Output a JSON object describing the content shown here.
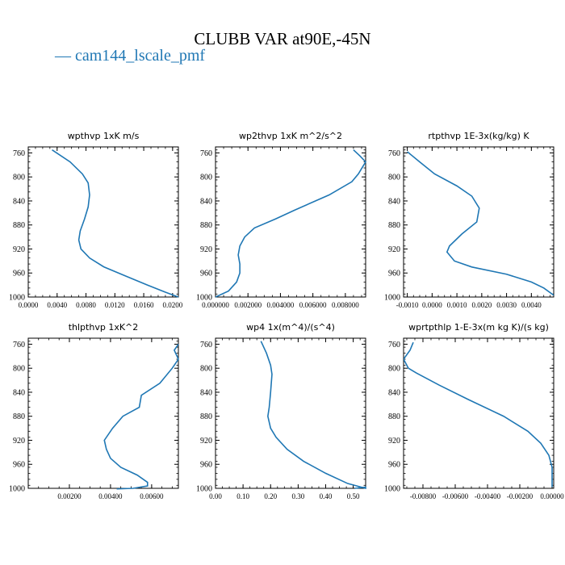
{
  "figure_title": "CLUBB VAR at90E,-45N",
  "legend": {
    "prefix": "—",
    "label": "cam144_lscale_pmf"
  },
  "colors": {
    "series": "#1f77b4",
    "axes": "#000000"
  },
  "chart_data": [
    {
      "type": "line",
      "title": "wpthvp  1xK m/s",
      "ylim": [
        1000,
        750
      ],
      "yticks": [
        760,
        800,
        840,
        880,
        920,
        960,
        1000
      ],
      "xlim": [
        0,
        0.0208
      ],
      "xticks": [
        0,
        0.004,
        0.008,
        0.012,
        0.016,
        0.02
      ],
      "xtick_labels": [
        "0.0000",
        "0.0040",
        "0.0080",
        "0.0120",
        "0.0160",
        "0.0200"
      ],
      "series": [
        {
          "points": [
            [
              0.0033,
              755
            ],
            [
              0.0058,
              775
            ],
            [
              0.0075,
              795
            ],
            [
              0.0083,
              810
            ],
            [
              0.0085,
              830
            ],
            [
              0.0083,
              850
            ],
            [
              0.0078,
              870
            ],
            [
              0.0072,
              890
            ],
            [
              0.007,
              905
            ],
            [
              0.0073,
              920
            ],
            [
              0.0085,
              935
            ],
            [
              0.0105,
              950
            ],
            [
              0.0135,
              965
            ],
            [
              0.0165,
              980
            ],
            [
              0.019,
              992
            ],
            [
              0.0208,
              1000
            ]
          ]
        }
      ]
    },
    {
      "type": "line",
      "title": "wp2thvp  1xK m^2/s^2",
      "ylim": [
        1000,
        750
      ],
      "yticks": [
        760,
        800,
        840,
        880,
        920,
        960,
        1000
      ],
      "xlim": [
        0,
        0.00925
      ],
      "xticks": [
        0,
        0.002,
        0.004,
        0.006,
        0.008
      ],
      "xtick_labels": [
        "0.000000",
        "0.002000",
        "0.004000",
        "0.006000",
        "0.008000"
      ],
      "series": [
        {
          "points": [
            [
              0.0085,
              755
            ],
            [
              0.0089,
              765
            ],
            [
              0.00925,
              775
            ],
            [
              0.0088,
              795
            ],
            [
              0.0084,
              808
            ],
            [
              0.007,
              830
            ],
            [
              0.0049,
              855
            ],
            [
              0.0037,
              870
            ],
            [
              0.0024,
              885
            ],
            [
              0.0018,
              900
            ],
            [
              0.0015,
              915
            ],
            [
              0.0014,
              930
            ],
            [
              0.0015,
              945
            ],
            [
              0.0015,
              960
            ],
            [
              0.0013,
              975
            ],
            [
              0.0008,
              990
            ],
            [
              0.0,
              1000
            ]
          ]
        }
      ]
    },
    {
      "type": "line",
      "title": "rtpthvp  1E-3x(kg/kg) K",
      "ylim": [
        1000,
        750
      ],
      "yticks": [
        760,
        800,
        840,
        880,
        920,
        960,
        1000
      ],
      "xlim": [
        -0.00115,
        0.0049
      ],
      "xticks": [
        -0.001,
        0,
        0.001,
        0.002,
        0.003,
        0.004
      ],
      "xtick_labels": [
        "-0.0010",
        "0.0000",
        "0.0010",
        "0.0020",
        "0.0030",
        "0.0040"
      ],
      "series": [
        {
          "points": [
            [
              -0.001,
              758
            ],
            [
              -0.0005,
              775
            ],
            [
              0.0001,
              795
            ],
            [
              0.001,
              815
            ],
            [
              0.0016,
              832
            ],
            [
              0.0019,
              852
            ],
            [
              0.0018,
              875
            ],
            [
              0.0012,
              895
            ],
            [
              0.0007,
              915
            ],
            [
              0.0006,
              925
            ],
            [
              0.0009,
              940
            ],
            [
              0.0016,
              950
            ],
            [
              0.003,
              962
            ],
            [
              0.004,
              975
            ],
            [
              0.0045,
              985
            ],
            [
              0.0049,
              997
            ]
          ]
        }
      ]
    },
    {
      "type": "line",
      "title": "thlpthvp  1xK^2",
      "ylim": [
        1000,
        750
      ],
      "yticks": [
        760,
        800,
        840,
        880,
        920,
        960,
        1000
      ],
      "xlim": [
        0,
        0.0073
      ],
      "xticks": [
        0.002,
        0.004,
        0.006
      ],
      "xtick_labels": [
        "0.00200",
        "0.00400",
        "0.00600"
      ],
      "series": [
        {
          "points": [
            [
              0.0073,
              760
            ],
            [
              0.0071,
              770
            ],
            [
              0.0073,
              785
            ],
            [
              0.007,
              800
            ],
            [
              0.0064,
              825
            ],
            [
              0.0055,
              845
            ],
            [
              0.0054,
              865
            ],
            [
              0.0046,
              880
            ],
            [
              0.0041,
              900
            ],
            [
              0.0037,
              920
            ],
            [
              0.0038,
              935
            ],
            [
              0.004,
              950
            ],
            [
              0.0045,
              965
            ],
            [
              0.0053,
              978
            ],
            [
              0.0058,
              990
            ],
            [
              0.0058,
              996
            ],
            [
              0.0051,
              1000
            ],
            [
              0.0043,
              1001
            ]
          ]
        }
      ]
    },
    {
      "type": "line",
      "title": "wp4  1x(m^4)/(s^4)",
      "ylim": [
        1000,
        750
      ],
      "yticks": [
        760,
        800,
        840,
        880,
        920,
        960,
        1000
      ],
      "xlim": [
        0,
        0.545
      ],
      "xticks": [
        0,
        0.1,
        0.2,
        0.3,
        0.4,
        0.5
      ],
      "xtick_labels": [
        "0.00",
        "0.10",
        "0.20",
        "0.30",
        "0.40",
        "0.50"
      ],
      "series": [
        {
          "points": [
            [
              0.165,
              755
            ],
            [
              0.185,
              775
            ],
            [
              0.2,
              795
            ],
            [
              0.205,
              810
            ],
            [
              0.2,
              840
            ],
            [
              0.195,
              865
            ],
            [
              0.19,
              880
            ],
            [
              0.2,
              900
            ],
            [
              0.22,
              915
            ],
            [
              0.26,
              935
            ],
            [
              0.32,
              955
            ],
            [
              0.4,
              975
            ],
            [
              0.48,
              992
            ],
            [
              0.545,
              1000
            ],
            [
              0.545,
              998
            ],
            [
              0.505,
              1000
            ]
          ]
        }
      ]
    },
    {
      "type": "line",
      "title": "wprtpthlp  1-E-3x(m kg K)/(s kg)",
      "ylim": [
        1000,
        750
      ],
      "yticks": [
        760,
        800,
        840,
        880,
        920,
        960,
        1000
      ],
      "xlim": [
        -0.0092,
        0.0001
      ],
      "xticks": [
        -0.008,
        -0.006,
        -0.004,
        -0.002,
        0.0
      ],
      "xtick_labels": [
        "-0.00800",
        "-0.00600",
        "-0.00400",
        "-0.00200",
        "0.00000"
      ],
      "series": [
        {
          "points": [
            [
              -0.0086,
              757
            ],
            [
              -0.0088,
              770
            ],
            [
              -0.0092,
              785
            ],
            [
              -0.0089,
              800
            ],
            [
              -0.0084,
              808
            ],
            [
              -0.007,
              828
            ],
            [
              -0.0052,
              852
            ],
            [
              -0.003,
              880
            ],
            [
              -0.0015,
              905
            ],
            [
              -0.0007,
              925
            ],
            [
              -0.0002,
              945
            ],
            [
              0.0,
              965
            ],
            [
              0.0,
              980
            ],
            [
              0.0,
              990
            ],
            [
              0.0,
              998
            ]
          ]
        }
      ]
    }
  ]
}
